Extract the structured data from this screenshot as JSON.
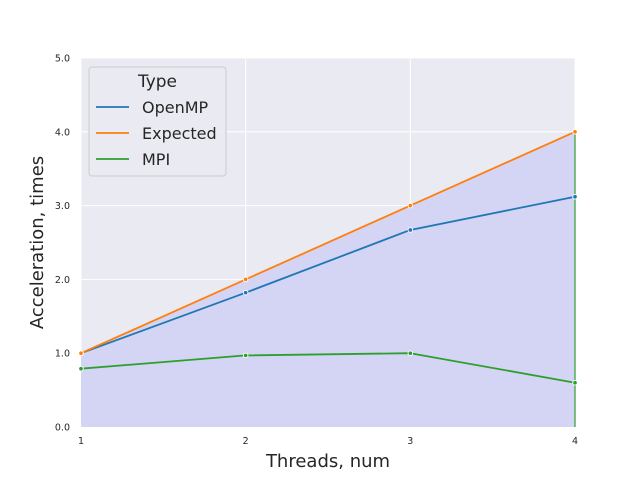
{
  "chart_data": {
    "type": "line",
    "xlabel": "Threads, num",
    "ylabel": "Acceleration, times",
    "x": [
      1,
      2,
      3,
      4
    ],
    "x_ticks": [
      "1",
      "2",
      "3",
      "4"
    ],
    "y_ticks": [
      "0.0",
      "1.0",
      "2.0",
      "3.0",
      "4.0",
      "5.0"
    ],
    "xlim": [
      1,
      4
    ],
    "ylim": [
      0,
      5
    ],
    "grid": true,
    "legend": {
      "title": "Type",
      "position": "top-left"
    },
    "background_color": "#eaeaf2",
    "fill_color": "#d4d4f4",
    "fill_under": "Expected",
    "series": [
      {
        "name": "OpenMP",
        "color": "#1f77b4",
        "values": [
          1.0,
          1.82,
          2.67,
          3.12
        ]
      },
      {
        "name": "Expected",
        "color": "#ff7f0e",
        "values": [
          1.0,
          2.0,
          3.0,
          4.0
        ]
      },
      {
        "name": "MPI",
        "color": "#2ca02c",
        "values": [
          0.79,
          0.97,
          1.0,
          0.6
        ]
      }
    ]
  }
}
